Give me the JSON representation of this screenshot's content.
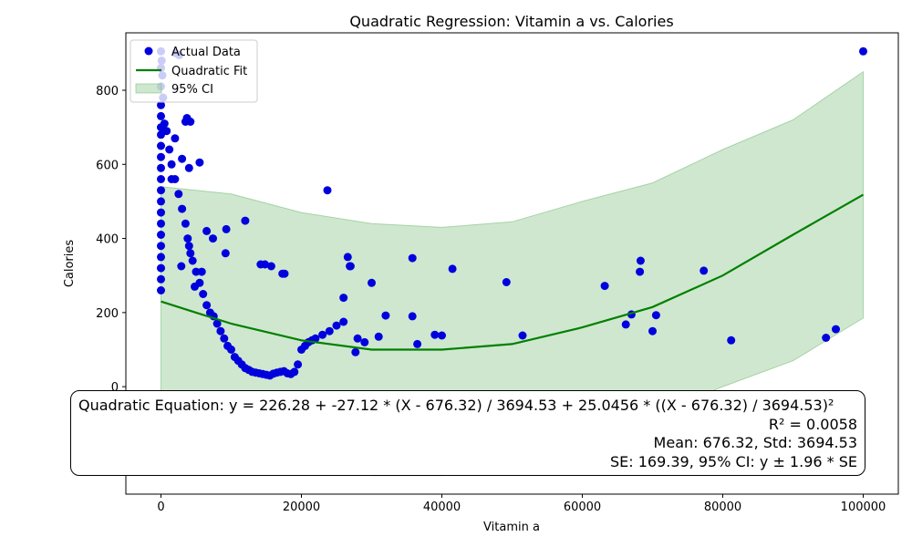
{
  "chart_data": {
    "type": "scatter",
    "title": "Quadratic Regression: Vitamin a vs. Calories",
    "xlabel": "Vitamin a",
    "ylabel": "Calories",
    "xlim": [
      -5000,
      105000
    ],
    "ylim": [
      -290,
      955
    ],
    "xticks": [
      0,
      20000,
      40000,
      60000,
      80000,
      100000
    ],
    "yticks": [
      0,
      200,
      400,
      600,
      800
    ],
    "grid": false,
    "legend_position": "top-left",
    "legend": [
      "Actual Data",
      "Quadratic Fit",
      "95% CI"
    ],
    "colors": {
      "points": "#0000dd",
      "fit": "#008000",
      "ci": "#9fcf9f"
    },
    "series": [
      {
        "name": "Actual Data",
        "type": "scatter",
        "x": [
          0,
          0,
          0,
          0,
          0,
          0,
          0,
          0,
          0,
          0,
          0,
          0,
          0,
          0,
          0,
          0,
          0,
          0,
          0,
          0,
          0,
          100,
          200,
          300,
          500,
          800,
          1200,
          1500,
          2000,
          2500,
          3000,
          3500,
          3800,
          4000,
          4200,
          4500,
          5000,
          5500,
          6000,
          6500,
          7000,
          7500,
          8000,
          8500,
          9000,
          9500,
          10000,
          10500,
          11000,
          11500,
          12000,
          12500,
          13000,
          13500,
          14000,
          14500,
          15000,
          15500,
          16000,
          16500,
          17000,
          17500,
          18000,
          18500,
          19000,
          19500,
          20000,
          20500,
          21000,
          21500,
          22000,
          23000,
          24000,
          25000,
          26000,
          27000,
          28000,
          29000,
          30000,
          31000,
          32000,
          35800,
          36500,
          39000,
          40000,
          41500,
          49200,
          51500,
          63200,
          66200,
          67000,
          68200,
          68300,
          70000,
          70500,
          77300,
          81200,
          94700,
          96100,
          100000,
          2100,
          2600,
          3500,
          3700,
          4000,
          4200,
          9300,
          9200,
          12000,
          3000,
          2000,
          1500,
          5500,
          23700,
          26600,
          26900,
          27700,
          26000,
          35800,
          14200,
          15700,
          14800,
          17300,
          17600,
          7400,
          6500,
          5800,
          4800,
          2900
        ],
        "y": [
          905,
          860,
          810,
          760,
          730,
          700,
          680,
          650,
          620,
          590,
          560,
          530,
          500,
          470,
          440,
          410,
          380,
          350,
          320,
          290,
          260,
          880,
          840,
          780,
          710,
          690,
          640,
          600,
          560,
          520,
          480,
          440,
          400,
          380,
          360,
          340,
          310,
          280,
          250,
          220,
          200,
          190,
          170,
          150,
          130,
          110,
          100,
          80,
          70,
          60,
          50,
          45,
          40,
          38,
          36,
          34,
          32,
          30,
          35,
          38,
          40,
          42,
          36,
          34,
          40,
          60,
          100,
          110,
          120,
          125,
          130,
          140,
          150,
          165,
          175,
          325,
          130,
          120,
          280,
          135,
          192,
          190,
          115,
          140,
          138,
          318,
          282,
          138,
          272,
          168,
          195,
          310,
          340,
          150,
          193,
          313,
          125,
          132,
          155,
          905,
          900,
          895,
          715,
          725,
          590,
          715,
          425,
          360,
          448,
          615,
          670,
          560,
          605,
          530,
          350,
          325,
          93,
          240,
          347,
          330,
          325,
          330,
          305,
          305,
          400,
          420,
          310,
          270,
          325
        ]
      },
      {
        "name": "Quadratic Fit",
        "type": "line",
        "x": [
          0,
          5000,
          10000,
          20000,
          30000,
          40000,
          50000,
          60000,
          70000,
          80000,
          90000,
          100000
        ],
        "y": [
          230,
          200,
          170,
          125,
          100,
          100,
          115,
          160,
          215,
          300,
          410,
          518
        ]
      },
      {
        "name": "95% CI",
        "type": "area",
        "x": [
          0,
          10000,
          20000,
          30000,
          40000,
          50000,
          60000,
          70000,
          80000,
          90000,
          100000
        ],
        "upper": [
          540,
          520,
          470,
          440,
          430,
          445,
          500,
          550,
          640,
          720,
          850
        ],
        "lower": [
          -60,
          -120,
          -200,
          -240,
          -240,
          -200,
          -150,
          -80,
          0,
          70,
          185
        ]
      }
    ]
  },
  "equation_box": {
    "line1": "Quadratic Equation: y = 226.28 + -27.12 * (X - 676.32) / 3694.53 + 25.0456 * ((X - 676.32) / 3694.53)²",
    "line2": "R² = 0.0058",
    "line3": "Mean: 676.32, Std: 3694.53",
    "line4": "SE: 169.39, 95% CI: y ± 1.96 * SE"
  }
}
